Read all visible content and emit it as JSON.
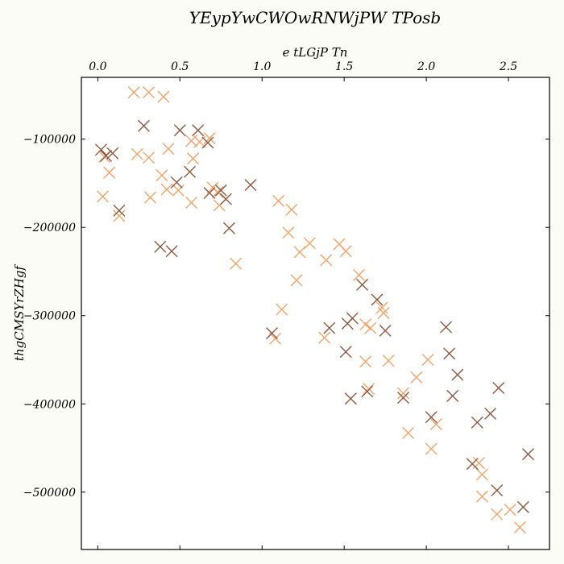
{
  "chart_data": {
    "type": "scatter",
    "title": "YEypYwCWOwRNWjPW TPosb",
    "xlabel": "e tLGjP Tn",
    "ylabel": "thgCMSYrZHgf",
    "xlim": [
      -0.1,
      2.75
    ],
    "ylim": [
      -565000,
      -30000
    ],
    "x_axis_position": "top",
    "grid": false,
    "x_ticks": [
      0.0,
      0.5,
      1.0,
      1.5,
      2.0,
      2.5
    ],
    "x_tick_labels": [
      "0.0",
      "0.5",
      "1.0",
      "1.5",
      "2.0",
      "2.5"
    ],
    "y_ticks": [
      -100000,
      -200000,
      -300000,
      -400000,
      -500000
    ],
    "y_tick_labels": [
      "−100000",
      "−200000",
      "−300000",
      "−400000",
      "−500000"
    ],
    "marker": "x",
    "series": [
      {
        "color": "#f0a46c",
        "points": [
          [
            0.22,
            -47000
          ],
          [
            0.31,
            -47000
          ],
          [
            0.4,
            -52000
          ],
          [
            0.04,
            -120000
          ],
          [
            0.07,
            -138000
          ],
          [
            0.03,
            -165000
          ],
          [
            0.13,
            -187000
          ],
          [
            0.24,
            -117000
          ],
          [
            0.31,
            -121000
          ],
          [
            0.32,
            -166000
          ],
          [
            0.39,
            -141000
          ],
          [
            0.43,
            -111000
          ],
          [
            0.42,
            -157000
          ],
          [
            0.49,
            -158000
          ],
          [
            0.57,
            -172000
          ],
          [
            0.57,
            -102000
          ],
          [
            0.62,
            -103000
          ],
          [
            0.58,
            -122000
          ],
          [
            0.68,
            -99000
          ],
          [
            0.7,
            -155000
          ],
          [
            0.73,
            -160000
          ],
          [
            0.74,
            -175000
          ],
          [
            0.84,
            -241000
          ],
          [
            1.1,
            -170000
          ],
          [
            1.18,
            -180000
          ],
          [
            1.16,
            -206000
          ],
          [
            1.23,
            -228000
          ],
          [
            1.21,
            -260000
          ],
          [
            1.29,
            -218000
          ],
          [
            1.39,
            -237000
          ],
          [
            1.12,
            -293000
          ],
          [
            1.08,
            -326000
          ],
          [
            1.47,
            -219000
          ],
          [
            1.51,
            -227000
          ],
          [
            1.59,
            -254000
          ],
          [
            1.63,
            -310000
          ],
          [
            1.66,
            -314000
          ],
          [
            1.73,
            -291000
          ],
          [
            1.74,
            -297000
          ],
          [
            1.38,
            -325000
          ],
          [
            1.63,
            -352000
          ],
          [
            1.65,
            -383000
          ],
          [
            1.77,
            -351000
          ],
          [
            1.86,
            -388000
          ],
          [
            1.89,
            -433000
          ],
          [
            1.94,
            -370000
          ],
          [
            2.01,
            -350000
          ],
          [
            2.06,
            -423000
          ],
          [
            2.03,
            -451000
          ],
          [
            2.32,
            -467000
          ],
          [
            2.34,
            -480000
          ],
          [
            2.34,
            -505000
          ],
          [
            2.43,
            -525000
          ],
          [
            2.51,
            -520000
          ],
          [
            2.57,
            -540000
          ]
        ]
      },
      {
        "color": "#8b5a42",
        "points": [
          [
            0.02,
            -112000
          ],
          [
            0.05,
            -119000
          ],
          [
            0.09,
            -116000
          ],
          [
            0.13,
            -181000
          ],
          [
            0.28,
            -85000
          ],
          [
            0.5,
            -90000
          ],
          [
            0.61,
            -90000
          ],
          [
            0.67,
            -104000
          ],
          [
            0.56,
            -137000
          ],
          [
            0.48,
            -149000
          ],
          [
            0.68,
            -161000
          ],
          [
            0.75,
            -158000
          ],
          [
            0.78,
            -168000
          ],
          [
            0.8,
            -201000
          ],
          [
            0.93,
            -152000
          ],
          [
            0.38,
            -222000
          ],
          [
            0.45,
            -227000
          ],
          [
            1.06,
            -320000
          ],
          [
            1.41,
            -314000
          ],
          [
            1.52,
            -309000
          ],
          [
            1.55,
            -303000
          ],
          [
            1.51,
            -341000
          ],
          [
            1.54,
            -394000
          ],
          [
            1.61,
            -265000
          ],
          [
            1.7,
            -282000
          ],
          [
            1.75,
            -317000
          ],
          [
            1.64,
            -386000
          ],
          [
            1.86,
            -393000
          ],
          [
            2.03,
            -415000
          ],
          [
            2.12,
            -313000
          ],
          [
            2.14,
            -343000
          ],
          [
            2.19,
            -367000
          ],
          [
            2.16,
            -391000
          ],
          [
            2.28,
            -468000
          ],
          [
            2.31,
            -421000
          ],
          [
            2.39,
            -411000
          ],
          [
            2.44,
            -382000
          ],
          [
            2.43,
            -498000
          ],
          [
            2.59,
            -517000
          ],
          [
            2.62,
            -457000
          ]
        ]
      }
    ]
  }
}
